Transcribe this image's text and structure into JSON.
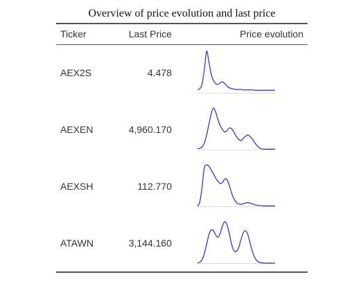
{
  "caption": "Overview of price evolution and last price",
  "headers": {
    "ticker": "Ticker",
    "last_price": "Last Price",
    "price_evolution": "Price evolution"
  },
  "rows": [
    {
      "ticker": "AEX2S",
      "last_price": "4.478",
      "sparkline": [
        0.08,
        0.1,
        0.2,
        0.55,
        1.0,
        0.75,
        0.45,
        0.3,
        0.22,
        0.2,
        0.24,
        0.26,
        0.22,
        0.16,
        0.12,
        0.1,
        0.09,
        0.08,
        0.08,
        0.08,
        0.07,
        0.07,
        0.07,
        0.07,
        0.07,
        0.06,
        0.06,
        0.06,
        0.06,
        0.06,
        0.06,
        0.06,
        0.06,
        0.06,
        0.06
      ]
    },
    {
      "ticker": "AEXEN",
      "last_price": "4,960.170",
      "sparkline": [
        0.02,
        0.03,
        0.06,
        0.15,
        0.35,
        0.6,
        0.85,
        1.0,
        0.9,
        0.72,
        0.58,
        0.48,
        0.42,
        0.46,
        0.52,
        0.5,
        0.42,
        0.32,
        0.25,
        0.22,
        0.26,
        0.32,
        0.35,
        0.32,
        0.26,
        0.18,
        0.1,
        0.05,
        0.02,
        0.01,
        0.01,
        0.01,
        0.01,
        0.01,
        0.01
      ]
    },
    {
      "ticker": "AEXSH",
      "last_price": "112.770",
      "sparkline": [
        0.0,
        0.1,
        0.45,
        0.92,
        1.0,
        0.97,
        0.88,
        0.78,
        0.68,
        0.6,
        0.55,
        0.58,
        0.66,
        0.64,
        0.5,
        0.32,
        0.18,
        0.1,
        0.06,
        0.05,
        0.06,
        0.08,
        0.09,
        0.08,
        0.06,
        0.04,
        0.03,
        0.02,
        0.02,
        0.01,
        0.01,
        0.01,
        0.01,
        0.01,
        0.01
      ]
    },
    {
      "ticker": "ATAWN",
      "last_price": "3,144.160",
      "sparkline": [
        0.0,
        0.02,
        0.08,
        0.22,
        0.45,
        0.68,
        0.8,
        0.78,
        0.68,
        0.62,
        0.72,
        0.9,
        1.0,
        0.92,
        0.7,
        0.45,
        0.3,
        0.28,
        0.36,
        0.55,
        0.72,
        0.78,
        0.7,
        0.5,
        0.3,
        0.15,
        0.06,
        0.02,
        0.01,
        0.0,
        0.0,
        0.0,
        0.0,
        0.0,
        0.0
      ]
    }
  ],
  "colors": {
    "sparkline": "#2424e6",
    "baseline": "#e0e0e0"
  }
}
